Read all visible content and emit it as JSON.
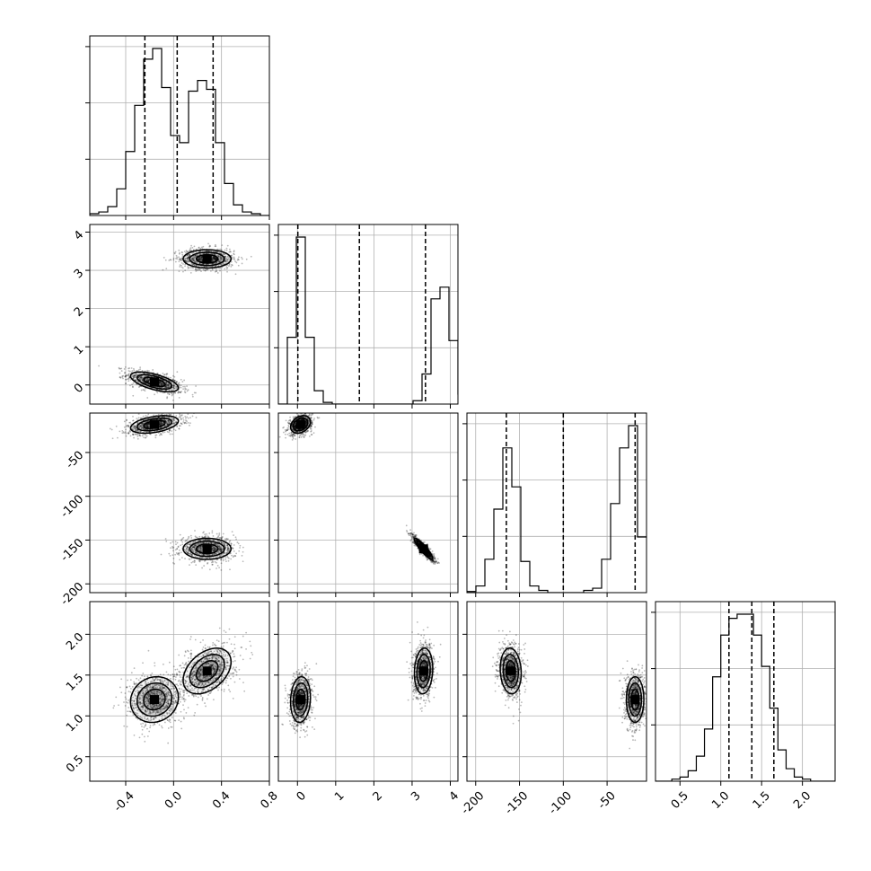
{
  "chart_data": {
    "type": "corner",
    "dimensions": 4,
    "ranges": [
      [
        -0.7,
        0.8
      ],
      [
        -0.5,
        4.2
      ],
      [
        -210,
        -5
      ],
      [
        0.2,
        2.4
      ]
    ],
    "ticks": [
      [
        "-0.4",
        "0.0",
        "0.4",
        "0.8"
      ],
      [
        "0",
        "1",
        "2",
        "3",
        "4"
      ],
      [
        "-200",
        "-150",
        "-100",
        "-50"
      ],
      [
        "0.5",
        "1.0",
        "1.5",
        "2.0"
      ]
    ],
    "tick_values": [
      [
        -0.4,
        0.0,
        0.4,
        0.8
      ],
      [
        0,
        1,
        2,
        3,
        4
      ],
      [
        -200,
        -150,
        -100,
        -50
      ],
      [
        0.5,
        1.0,
        1.5,
        2.0
      ]
    ],
    "histograms": [
      {
        "edges_start": -0.7,
        "bin_width": 0.075,
        "counts": [
          1,
          2,
          5,
          15,
          36,
          62,
          88,
          94,
          72,
          45,
          41,
          70,
          76,
          71,
          41,
          18,
          6,
          2,
          1,
          0
        ]
      },
      {
        "edges_start": -0.5,
        "bin_width": 0.235,
        "counts": [
          0,
          40,
          100,
          40,
          8,
          1,
          0,
          0,
          0,
          0,
          0,
          0,
          0,
          0,
          0,
          2,
          18,
          63,
          70,
          38,
          6
        ]
      },
      {
        "edges_start": -210,
        "bin_width": 10.25,
        "counts": [
          1,
          6,
          30,
          75,
          130,
          95,
          28,
          6,
          2,
          0,
          0,
          0,
          0,
          2,
          4,
          30,
          80,
          130,
          150,
          50
        ]
      },
      {
        "edges_start": 0.2,
        "bin_width": 0.1,
        "counts": [
          0,
          0,
          1,
          2,
          5,
          12,
          25,
          50,
          70,
          78,
          80,
          80,
          70,
          55,
          35,
          15,
          6,
          2,
          1,
          0,
          0,
          0
        ]
      }
    ],
    "quantiles": [
      [
        -0.24,
        0.03,
        0.33
      ],
      [
        0.01,
        1.62,
        3.35
      ],
      [
        -165,
        -100,
        -18
      ],
      [
        1.1,
        1.38,
        1.65
      ]
    ],
    "modes": [
      {
        "mean": [
          -0.16,
          0.08,
          -18,
          1.2
        ],
        "sd": [
          0.1,
          0.13,
          5,
          0.14
        ],
        "rho": {
          "0-1": -0.6,
          "0-2": 0.4,
          "0-3": 0.1,
          "1-2": 0.3,
          "1-3": 0.1,
          "2-3": 0.0
        }
      },
      {
        "mean": [
          0.28,
          3.3,
          -160,
          1.55
        ],
        "sd": [
          0.1,
          0.12,
          6,
          0.14
        ],
        "rho": {
          "0-1": 0.0,
          "0-2": 0.0,
          "0-3": 0.4,
          "1-2": -0.9,
          "1-3": 0.1,
          "2-3": -0.1
        }
      }
    ]
  }
}
